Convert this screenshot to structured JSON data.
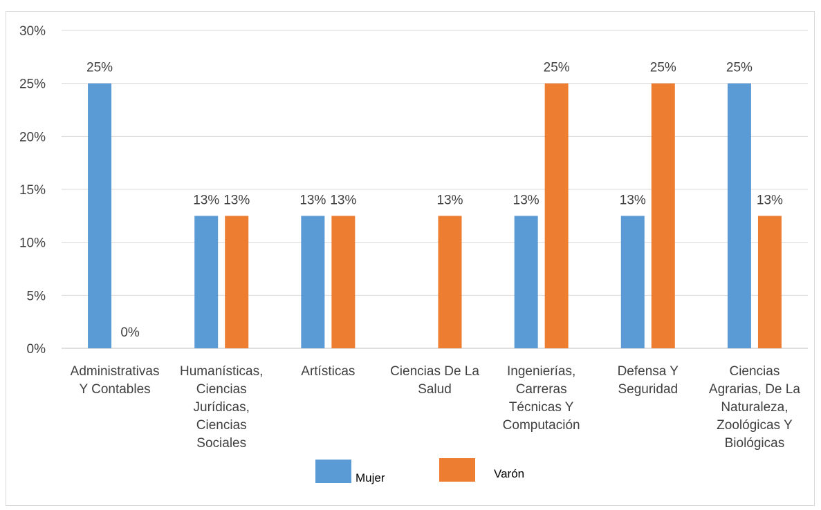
{
  "chart_data": {
    "type": "bar",
    "categories": [
      [
        "Administrativas",
        "Y Contables"
      ],
      [
        "Humanísticas,",
        "Ciencias",
        "Jurídicas,",
        "Ciencias",
        "Sociales"
      ],
      [
        "Artísticas"
      ],
      [
        "Ciencias De La",
        "Salud"
      ],
      [
        "Ingenierías,",
        "Carreras",
        "Técnicas Y",
        "Computación"
      ],
      [
        "Defensa Y",
        "Seguridad"
      ],
      [
        "Ciencias",
        "Agrarias, De La",
        "Naturaleza,",
        "Zoológicas Y",
        "Biológicas"
      ]
    ],
    "series": [
      {
        "name": "Mujer",
        "color": "#5b9bd5",
        "values": [
          25,
          12.5,
          12.5,
          0,
          12.5,
          12.5,
          25
        ],
        "labels": [
          "25%",
          "13%",
          "13%",
          "",
          "13%",
          "13%",
          "25%"
        ]
      },
      {
        "name": "Varón",
        "color": "#ed7d31",
        "values": [
          0,
          12.5,
          12.5,
          12.5,
          25,
          25,
          12.5
        ],
        "labels": [
          "0%",
          "13%",
          "13%",
          "13%",
          "25%",
          "25%",
          "13%"
        ]
      }
    ],
    "ylim": [
      0,
      30
    ],
    "yticks": [
      0,
      5,
      10,
      15,
      20,
      25,
      30
    ],
    "ytick_labels": [
      "0%",
      "5%",
      "10%",
      "15%",
      "20%",
      "25%",
      "30%"
    ],
    "grid": true,
    "legend_position": "bottom",
    "title": "",
    "xlabel": "",
    "ylabel": ""
  }
}
